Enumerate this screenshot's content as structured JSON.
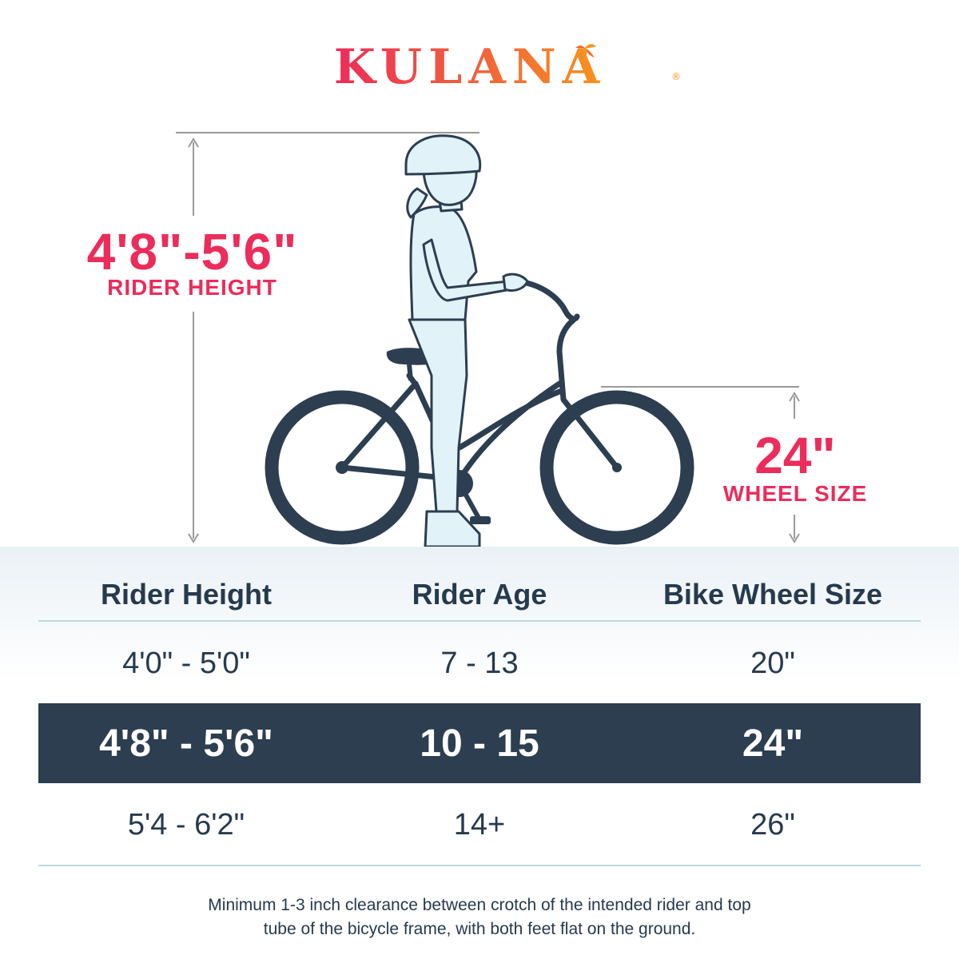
{
  "brand": {
    "name": "KULANA",
    "trademark": "®",
    "gradient_start": "#ec2c5a",
    "gradient_end": "#f7931e"
  },
  "callouts": {
    "rider_height_value": "4'8\"-5'6\"",
    "rider_height_label": "RIDER HEIGHT",
    "wheel_size_value": "24\"",
    "wheel_size_label": "WHEEL SIZE",
    "accent_color": "#ec2c5a"
  },
  "table": {
    "headers": [
      "Rider Height",
      "Rider Age",
      "Bike Wheel Size"
    ],
    "rows": [
      {
        "height": "4'0\" - 5'0\"",
        "age": "7 - 13",
        "wheel": "20\"",
        "highlighted": false
      },
      {
        "height": "4'8\" - 5'6\"",
        "age": "10 - 15",
        "wheel": "24\"",
        "highlighted": true
      },
      {
        "height": "5'4 - 6'2\"",
        "age": "14+",
        "wheel": "26\"",
        "highlighted": false
      }
    ],
    "highlight_color": "#2c3e50"
  },
  "note": {
    "line1": "Minimum 1-3 inch clearance between crotch of the intended rider and top",
    "line2": "tube of the bicycle frame, with both feet flat on the ground."
  }
}
